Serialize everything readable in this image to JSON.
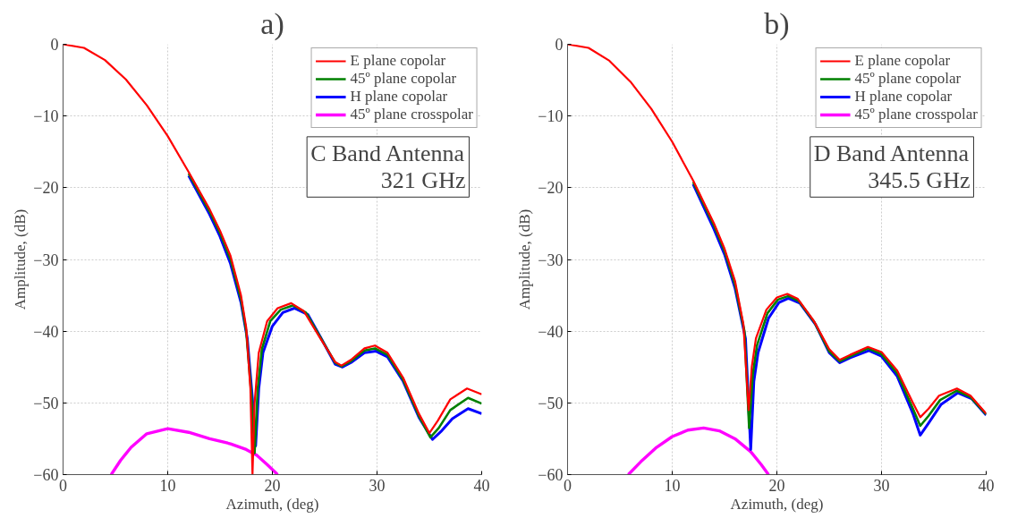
{
  "chart_data": [
    {
      "type": "line",
      "title": "a)",
      "xlabel": "Azimuth, (deg)",
      "ylabel": "Amplitude, (dB)",
      "xlim": [
        0,
        40
      ],
      "ylim": [
        -60,
        0
      ],
      "xticks": [
        0,
        10,
        20,
        30,
        40
      ],
      "yticks": [
        -60,
        -50,
        -40,
        -30,
        -20,
        -10,
        0
      ],
      "grid": true,
      "legend": "top right",
      "line_style": "solid",
      "marker": "none",
      "annotations": [
        "C Band Antenna\n321 GHz"
      ],
      "series": [
        {
          "name": "E plane copolar",
          "color": "#ff0000",
          "x": [
            0,
            2,
            4,
            6,
            8,
            10,
            12,
            14,
            15,
            16,
            17,
            17.5,
            17.9,
            18.1,
            18.3,
            18.7,
            19.5,
            20.5,
            21.8,
            23,
            24.5,
            26,
            26.6,
            27.5,
            28.8,
            29.8,
            31,
            32.5,
            34,
            35,
            35.8,
            37,
            38.6,
            40
          ],
          "values": [
            0,
            -0.5,
            -2.2,
            -4.9,
            -8.5,
            -12.8,
            -17.8,
            -23,
            -26,
            -29.5,
            -35,
            -39.5,
            -48,
            -60,
            -50,
            -43,
            -38.6,
            -36.8,
            -36.1,
            -37.2,
            -40.8,
            -44.3,
            -44.8,
            -44,
            -42.4,
            -42,
            -43,
            -46.5,
            -51.5,
            -54.2,
            -52.5,
            -49.5,
            -48,
            -48.8
          ]
        },
        {
          "name": "45º plane copolar",
          "color": "#008000",
          "x": [
            12,
            14,
            15,
            16,
            17,
            17.5,
            18,
            18.3,
            18.6,
            19,
            19.8,
            20.8,
            22,
            23.2,
            24.6,
            26,
            26.6,
            27.5,
            28.8,
            29.8,
            31,
            32.5,
            34,
            35.1,
            35.9,
            37,
            38.7,
            40
          ],
          "values": [
            -18,
            -23.3,
            -26.3,
            -30,
            -35.5,
            -40,
            -49,
            -57,
            -48,
            -42.5,
            -38.6,
            -37,
            -36.4,
            -37.4,
            -40.9,
            -44.4,
            -44.9,
            -44.2,
            -42.7,
            -42.4,
            -43.3,
            -46.8,
            -51.8,
            -54.8,
            -53.5,
            -51,
            -49.3,
            -50.1
          ]
        },
        {
          "name": "H plane copolar",
          "color": "#0000ff",
          "x": [
            12,
            14,
            15,
            16,
            17,
            17.6,
            18.1,
            18.4,
            18.7,
            19.1,
            20,
            21,
            22.1,
            23.4,
            24.7,
            26,
            26.7,
            27.6,
            28.8,
            29.9,
            31,
            32.5,
            34,
            35.3,
            36.1,
            37.2,
            38.7,
            40
          ],
          "values": [
            -18.3,
            -23.7,
            -26.8,
            -30.6,
            -36,
            -41,
            -49.5,
            -56,
            -48,
            -43,
            -39.3,
            -37.4,
            -36.8,
            -37.7,
            -41.1,
            -44.6,
            -45,
            -44.3,
            -43,
            -42.8,
            -43.6,
            -47,
            -52,
            -55.1,
            -54,
            -52.2,
            -50.8,
            -51.5
          ]
        },
        {
          "name": "45º plane crosspolar",
          "color": "#ff00ff",
          "x": [
            4.6,
            5.5,
            6.5,
            8,
            10,
            12,
            14,
            16,
            17.5,
            18.5,
            19.5,
            20.5
          ],
          "values": [
            -60,
            -58,
            -56.2,
            -54.3,
            -53.6,
            -54.1,
            -55,
            -55.7,
            -56.5,
            -57.3,
            -58.6,
            -60
          ]
        }
      ]
    },
    {
      "type": "line",
      "title": "b)",
      "xlabel": "Azimuth, (deg)",
      "ylabel": "Amplitude, (dB)",
      "xlim": [
        0,
        40
      ],
      "ylim": [
        -60,
        0
      ],
      "xticks": [
        0,
        10,
        20,
        30,
        40
      ],
      "yticks": [
        -60,
        -50,
        -40,
        -30,
        -20,
        -10,
        0
      ],
      "grid": true,
      "legend": "top right",
      "line_style": "solid",
      "marker": "none",
      "annotations": [
        "D Band Antenna\n345.5 GHz"
      ],
      "series": [
        {
          "name": "E plane copolar",
          "color": "#ff0000",
          "x": [
            0,
            2,
            4,
            6,
            8,
            10,
            12,
            14,
            15,
            16,
            16.8,
            17.3,
            17.6,
            18,
            19,
            20,
            21,
            22,
            23.5,
            25,
            26,
            27,
            28.7,
            30,
            31.5,
            33,
            33.7,
            34.5,
            35.5,
            37.2,
            38.5,
            40
          ],
          "values": [
            0,
            -0.5,
            -2.3,
            -5.2,
            -9,
            -13.6,
            -19,
            -25,
            -28.5,
            -33,
            -39,
            -51,
            -45,
            -41,
            -37,
            -35.3,
            -34.8,
            -35.5,
            -38.5,
            -42.5,
            -44,
            -43.3,
            -42.2,
            -42.9,
            -45.5,
            -50,
            -52,
            -50.8,
            -49,
            -48,
            -49,
            -51.5
          ]
        },
        {
          "name": "45º plane copolar",
          "color": "#008000",
          "x": [
            12,
            14,
            15,
            16,
            16.9,
            17.35,
            17.7,
            18.1,
            19.1,
            20.1,
            21.1,
            22.1,
            23.6,
            25,
            26,
            27,
            28.7,
            30,
            31.5,
            33,
            33.7,
            34.5,
            35.6,
            37.2,
            38.5,
            40
          ],
          "values": [
            -19.2,
            -25.3,
            -28.8,
            -33.5,
            -40,
            -53.5,
            -46,
            -42,
            -37.5,
            -35.6,
            -35.1,
            -35.8,
            -38.8,
            -42.8,
            -44.2,
            -43.5,
            -42.4,
            -43.2,
            -45.9,
            -50.8,
            -53.2,
            -51.8,
            -49.6,
            -48.3,
            -49.2,
            -51.6
          ]
        },
        {
          "name": "H plane copolar",
          "color": "#0000ff",
          "x": [
            12,
            14,
            15,
            16,
            17,
            17.5,
            17.8,
            18.2,
            19.2,
            20.2,
            21.1,
            22.2,
            23.7,
            25,
            26,
            27,
            28.8,
            30,
            31.5,
            33,
            33.7,
            34.5,
            35.7,
            37.3,
            38.6,
            40
          ],
          "values": [
            -19.5,
            -25.8,
            -29.3,
            -34,
            -41,
            -56.5,
            -47,
            -43,
            -38.2,
            -36,
            -35.4,
            -36.1,
            -39.1,
            -43,
            -44.4,
            -43.7,
            -42.7,
            -43.5,
            -46.3,
            -51.5,
            -54.5,
            -52.8,
            -50.2,
            -48.6,
            -49.4,
            -51.7
          ]
        },
        {
          "name": "45º plane crosspolar",
          "color": "#ff00ff",
          "x": [
            5.8,
            7,
            8.5,
            10,
            11.5,
            13,
            14.5,
            16,
            17.5,
            18.5,
            19.2
          ],
          "values": [
            -60,
            -58.2,
            -56.2,
            -54.7,
            -53.8,
            -53.5,
            -53.9,
            -55,
            -56.8,
            -58.6,
            -60
          ]
        }
      ]
    }
  ]
}
